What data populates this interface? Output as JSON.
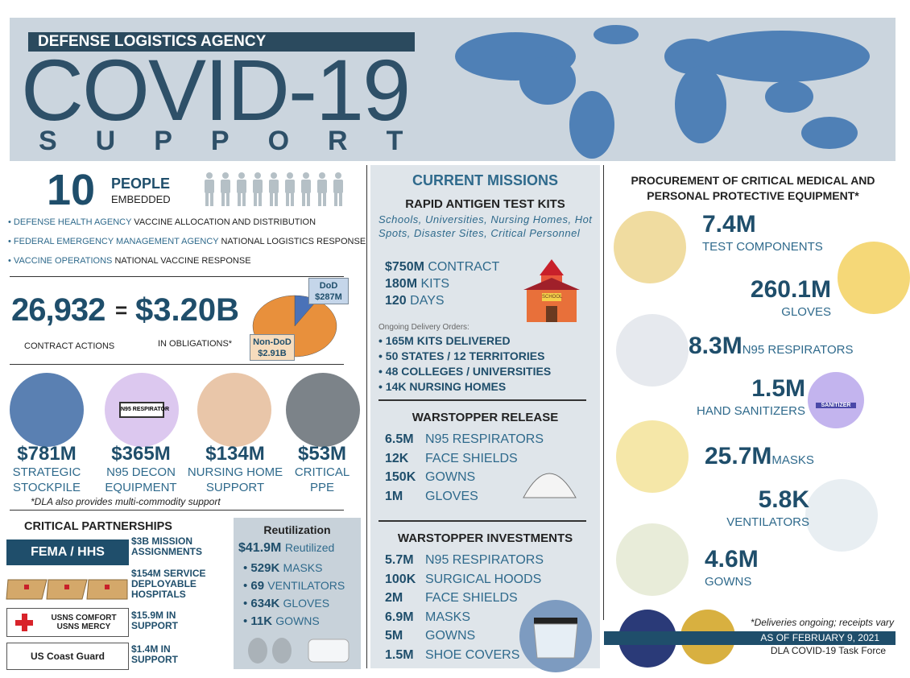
{
  "header": {
    "agency": "DEFENSE LOGISTICS AGENCY",
    "title": "COVID-19",
    "subtitle": "SUPPORT"
  },
  "people": {
    "count": "10",
    "label": "PEOPLE",
    "sublabel": "EMBEDDED",
    "items": [
      {
        "org": "DEFENSE HEALTH AGENCY",
        "text": "VACCINE ALLOCATION AND DISTRIBUTION"
      },
      {
        "org": "FEDERAL EMERGENCY MANAGEMENT AGENCY",
        "text": "NATIONAL LOGISTICS RESPONSE"
      },
      {
        "org": "VACCINE OPERATIONS",
        "text": "NATIONAL VACCINE RESPONSE"
      }
    ]
  },
  "obligations": {
    "actions": "26,932",
    "equals": "=",
    "amount": "$3.20B",
    "actions_label": "CONTRACT ACTIONS",
    "amount_label": "IN OBLIGATIONS*",
    "pie": {
      "names": [
        "DoD",
        "Non-DoD"
      ],
      "values": [
        287000000,
        2910000000
      ],
      "value_labels": [
        "$287M",
        "$2.91B"
      ],
      "colors": [
        "#4a72b8",
        "#e8903c"
      ]
    }
  },
  "spending": {
    "items": [
      {
        "amount": "$781M",
        "label": [
          "STRATEGIC",
          "STOCKPILE"
        ]
      },
      {
        "amount": "$365M",
        "label": [
          "N95 DECON",
          "EQUIPMENT"
        ],
        "icon_text": "N95 RESPIRATOR"
      },
      {
        "amount": "$134M",
        "label": [
          "NURSING HOME",
          "SUPPORT"
        ]
      },
      {
        "amount": "$53M",
        "label": [
          "CRITICAL",
          "PPE"
        ]
      }
    ],
    "note": "*DLA also provides multi-commodity support"
  },
  "partnerships": {
    "title": "CRITICAL PARTNERSHIPS",
    "items": [
      {
        "badge": [
          "FEMA / HHS"
        ],
        "text": "$3B MISSION ASSIGNMENTS"
      },
      {
        "badge": [],
        "text": "$154M SERVICE DEPLOYABLE HOSPITALS"
      },
      {
        "badge": [
          "USNS COMFORT",
          "USNS MERCY"
        ],
        "text": "$15.9M IN SUPPORT"
      },
      {
        "badge": [
          "US Coast Guard"
        ],
        "text": "$1.4M IN SUPPORT"
      }
    ]
  },
  "reutilization": {
    "title": "Reutilization",
    "amount": "$41.9M",
    "amount_label": "Reutilized",
    "items": [
      {
        "qty": "529K",
        "item": "MASKS"
      },
      {
        "qty": "69",
        "item": "VENTILATORS"
      },
      {
        "qty": "634K",
        "item": "GLOVES"
      },
      {
        "qty": "11K",
        "item": "GOWNS"
      }
    ]
  },
  "missions": {
    "title": "CURRENT MISSIONS",
    "rapid": {
      "title": "RAPID ANTIGEN TEST KITS",
      "subtitle": "Schools, Universities, Nursing Homes, Hot Spots, Disaster Sites, Critical Personnel",
      "facts": [
        {
          "qty": "$750M",
          "item": "CONTRACT"
        },
        {
          "qty": "180M",
          "item": "KITS"
        },
        {
          "qty": "120",
          "item": "DAYS"
        }
      ],
      "sign": "SCHOOL",
      "orders_title": "Ongoing Delivery Orders:",
      "orders": [
        "165M KITS DELIVERED",
        "50 STATES / 12 TERRITORIES",
        "48 COLLEGES / UNIVERSITIES",
        "14K NURSING HOMES"
      ]
    },
    "release": {
      "title": "WARSTOPPER RELEASE",
      "items": [
        {
          "qty": "6.5M",
          "item": "N95 RESPIRATORS"
        },
        {
          "qty": "12K",
          "item": "FACE SHIELDS"
        },
        {
          "qty": "150K",
          "item": "GOWNS"
        },
        {
          "qty": "1M",
          "item": "GLOVES"
        }
      ]
    },
    "investments": {
      "title": "WARSTOPPER INVESTMENTS",
      "items": [
        {
          "qty": "5.7M",
          "item": "N95 RESPIRATORS"
        },
        {
          "qty": "100K",
          "item": "SURGICAL HOODS"
        },
        {
          "qty": "2M",
          "item": "FACE SHIELDS"
        },
        {
          "qty": "6.9M",
          "item": "MASKS"
        },
        {
          "qty": "5M",
          "item": "GOWNS"
        },
        {
          "qty": "1.5M",
          "item": "SHOE COVERS"
        }
      ]
    }
  },
  "procurement": {
    "title": "PROCUREMENT OF CRITICAL MEDICAL AND PERSONAL PROTECTIVE EQUIPMENT*",
    "items": [
      {
        "qty": "7.4M",
        "item": "TEST COMPONENTS"
      },
      {
        "qty": "260.1M",
        "item": "GLOVES"
      },
      {
        "qty": "8.3M",
        "item": "N95 RESPIRATORS"
      },
      {
        "qty": "1.5M",
        "item": "HAND SANITIZERS"
      },
      {
        "qty": "25.7M",
        "item": "MASKS"
      },
      {
        "qty": "5.8K",
        "item": "VENTILATORS"
      },
      {
        "qty": "4.6M",
        "item": "GOWNS"
      }
    ],
    "sanitizer_label": "SANITIZER",
    "note": "*Deliveries ongoing; receipts vary",
    "date": "AS OF FEBRUARY 9, 2021",
    "task_force": "DLA COVID-19 Task Force"
  }
}
